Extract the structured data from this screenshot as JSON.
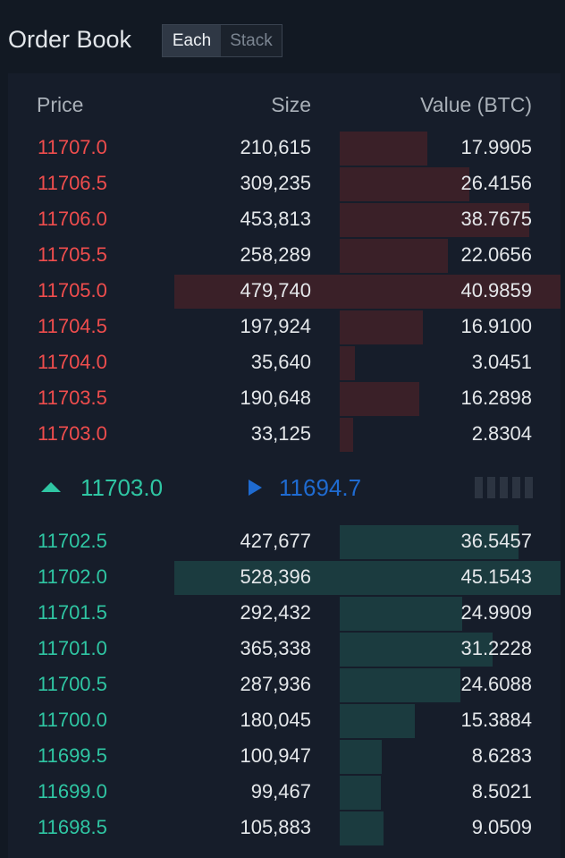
{
  "header": {
    "title": "Order Book",
    "toggle": {
      "each_label": "Each",
      "stack_label": "Stack",
      "selected": "Each"
    }
  },
  "columns": {
    "price": "Price",
    "size": "Size",
    "value": "Value (BTC)"
  },
  "asks": [
    {
      "price": "11707.0",
      "size": "210,615",
      "value": "17.9905"
    },
    {
      "price": "11706.5",
      "size": "309,235",
      "value": "26.4156"
    },
    {
      "price": "11706.0",
      "size": "453,813",
      "value": "38.7675"
    },
    {
      "price": "11705.5",
      "size": "258,289",
      "value": "22.0656"
    },
    {
      "price": "11705.0",
      "size": "479,740",
      "value": "40.9859"
    },
    {
      "price": "11704.5",
      "size": "197,924",
      "value": "16.9100"
    },
    {
      "price": "11704.0",
      "size": "35,640",
      "value": "3.0451"
    },
    {
      "price": "11703.5",
      "size": "190,648",
      "value": "16.2898"
    },
    {
      "price": "11703.0",
      "size": "33,125",
      "value": "2.8304"
    }
  ],
  "mid": {
    "last_price": "11703.0",
    "last_price_direction": "up-arrow-icon",
    "mark_price": "11694.7",
    "mark_price_icon": "flag-icon"
  },
  "bids": [
    {
      "price": "11702.5",
      "size": "427,677",
      "value": "36.5457"
    },
    {
      "price": "11702.0",
      "size": "528,396",
      "value": "45.1543"
    },
    {
      "price": "11701.5",
      "size": "292,432",
      "value": "24.9909"
    },
    {
      "price": "11701.0",
      "size": "365,338",
      "value": "31.2228"
    },
    {
      "price": "11700.5",
      "size": "287,936",
      "value": "24.6088"
    },
    {
      "price": "11700.0",
      "size": "180,045",
      "value": "15.3884"
    },
    {
      "price": "11699.5",
      "size": "100,947",
      "value": "8.6283"
    },
    {
      "price": "11699.0",
      "size": "99,467",
      "value": "8.5021"
    },
    {
      "price": "11698.5",
      "size": "105,883",
      "value": "9.0509"
    }
  ],
  "colors": {
    "ask": "#ef4d4d",
    "bid": "#2fc6a3",
    "mark": "#1f6bd1",
    "ask_bar": "#3a2028",
    "bid_bar": "#1b3b3f",
    "background": "#121923"
  }
}
